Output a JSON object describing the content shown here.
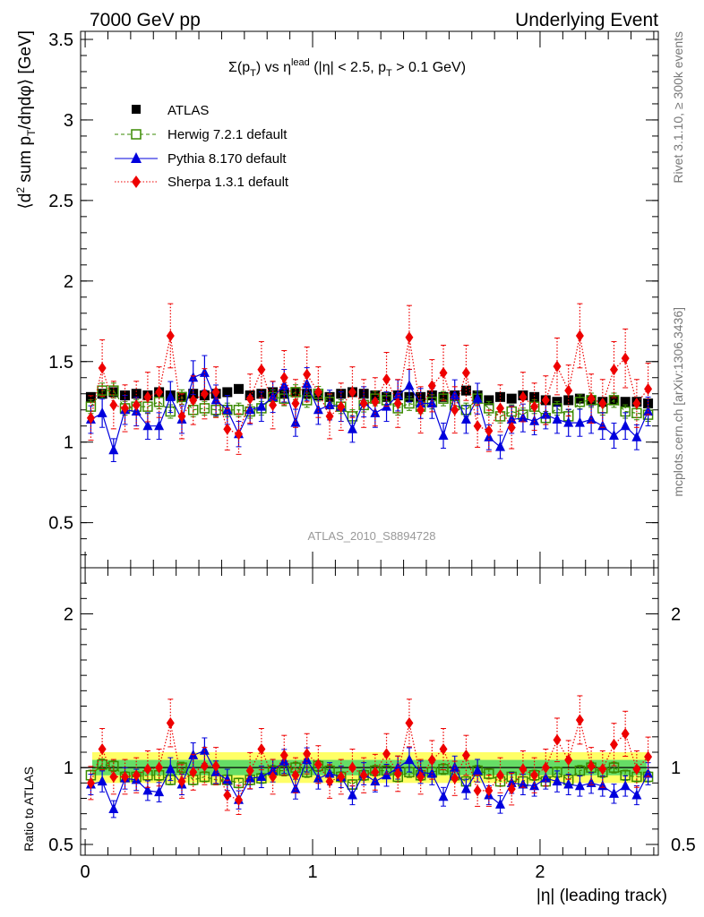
{
  "header": {
    "left": "7000 GeV pp",
    "right": "Underlying Event"
  },
  "side_text": {
    "rivet": "Rivet 3.1.10, ≥ 300k events",
    "mcplots": "mcplots.cern.ch [arXiv:1306.3436]"
  },
  "title": {
    "main": "Σ(p",
    "sub1": "T",
    "mid": ") vs η",
    "sup": "lead",
    "rest": " (|η| < 2.5, p",
    "sub2": "T",
    "end": " > 0.1 GeV)"
  },
  "analysis_label": "ATLAS_2010_S8894728",
  "axes": {
    "ylabel_top": "⟨d² sum p_T/dηdφ⟩ [GeV]",
    "ylabel_bottom": "Ratio to ATLAS",
    "xlabel": "|η| (leading track)"
  },
  "legend": [
    "ATLAS",
    "Herwig 7.2.1 default",
    "Pythia 8.170 default",
    "Sherpa 1.3.1 default"
  ],
  "colors": {
    "atlas": "#000000",
    "herwig": "#3a8a00",
    "pythia": "#0000dd",
    "sherpa": "#ee0000",
    "band_yellow": "#ffff66",
    "band_green": "#66dd66"
  },
  "chart_data": {
    "type": "scatter",
    "x": [
      0.025,
      0.075,
      0.125,
      0.175,
      0.225,
      0.275,
      0.325,
      0.375,
      0.425,
      0.475,
      0.525,
      0.575,
      0.625,
      0.675,
      0.725,
      0.775,
      0.825,
      0.875,
      0.925,
      0.975,
      1.025,
      1.075,
      1.125,
      1.175,
      1.225,
      1.275,
      1.325,
      1.375,
      1.425,
      1.475,
      1.525,
      1.575,
      1.625,
      1.675,
      1.725,
      1.775,
      1.825,
      1.875,
      1.925,
      1.975,
      2.025,
      2.075,
      2.125,
      2.175,
      2.225,
      2.275,
      2.325,
      2.375,
      2.425,
      2.475
    ],
    "xlim": [
      -0.02,
      2.52
    ],
    "xticks": [
      "0",
      "1",
      "2"
    ],
    "top_panel": {
      "ylim": [
        0.22,
        3.55
      ],
      "yticks": [
        "0.5",
        "1",
        "1.5",
        "2",
        "2.5",
        "3",
        "3.5"
      ],
      "series": [
        {
          "name": "ATLAS",
          "values": [
            1.28,
            1.3,
            1.31,
            1.29,
            1.3,
            1.29,
            1.31,
            1.29,
            1.28,
            1.3,
            1.29,
            1.3,
            1.31,
            1.33,
            1.29,
            1.3,
            1.31,
            1.3,
            1.31,
            1.3,
            1.29,
            1.28,
            1.3,
            1.31,
            1.3,
            1.29,
            1.28,
            1.29,
            1.28,
            1.28,
            1.29,
            1.28,
            1.29,
            1.32,
            1.29,
            1.26,
            1.28,
            1.27,
            1.29,
            1.28,
            1.26,
            1.25,
            1.26,
            1.27,
            1.26,
            1.25,
            1.26,
            1.25,
            1.25,
            1.24
          ]
        },
        {
          "name": "Herwig 7.2.1 default",
          "values": [
            1.22,
            1.32,
            1.32,
            1.21,
            1.22,
            1.22,
            1.25,
            1.19,
            1.28,
            1.2,
            1.21,
            1.2,
            1.2,
            1.2,
            1.19,
            1.21,
            1.28,
            1.27,
            1.31,
            1.26,
            1.3,
            1.25,
            1.22,
            1.16,
            1.23,
            1.27,
            1.26,
            1.21,
            1.24,
            1.22,
            1.25,
            1.27,
            1.23,
            1.2,
            1.27,
            1.21,
            1.16,
            1.19,
            1.17,
            1.22,
            1.15,
            1.21,
            1.16,
            1.25,
            1.26,
            1.21,
            1.26,
            1.19,
            1.18,
            1.17
          ]
        },
        {
          "name": "Pythia 8.170 default",
          "values": [
            1.14,
            1.18,
            0.95,
            1.2,
            1.19,
            1.1,
            1.1,
            1.28,
            1.14,
            1.4,
            1.43,
            1.26,
            1.2,
            1.05,
            1.2,
            1.22,
            1.28,
            1.35,
            1.12,
            1.36,
            1.2,
            1.23,
            1.22,
            1.08,
            1.25,
            1.18,
            1.22,
            1.29,
            1.35,
            1.24,
            1.24,
            1.04,
            1.29,
            1.14,
            1.27,
            1.03,
            0.97,
            1.14,
            1.15,
            1.13,
            1.17,
            1.14,
            1.12,
            1.12,
            1.14,
            1.1,
            1.04,
            1.1,
            1.03,
            1.19
          ]
        },
        {
          "name": "Sherpa 1.3.1 default",
          "values": [
            1.15,
            1.46,
            1.23,
            1.21,
            1.23,
            1.28,
            1.31,
            1.66,
            1.16,
            1.26,
            1.3,
            1.31,
            1.08,
            1.05,
            1.27,
            1.45,
            1.23,
            1.4,
            1.24,
            1.42,
            1.31,
            1.16,
            1.22,
            1.31,
            1.24,
            1.25,
            1.39,
            1.24,
            1.65,
            1.2,
            1.35,
            1.43,
            1.2,
            1.43,
            1.1,
            1.07,
            1.21,
            1.09,
            1.28,
            1.22,
            1.26,
            1.47,
            1.32,
            1.66,
            1.27,
            1.24,
            1.45,
            1.52,
            1.24,
            1.33
          ]
        }
      ]
    },
    "ratio_panel": {
      "ylim": [
        0.43,
        2.3
      ],
      "yticks": [
        "0.5",
        "1",
        "2"
      ],
      "band_yellow": [
        0.9,
        1.1
      ],
      "band_green": [
        0.95,
        1.05
      ],
      "series": [
        {
          "name": "Herwig 7.2.1 default",
          "values": [
            0.95,
            1.02,
            1.01,
            0.94,
            0.94,
            0.95,
            0.95,
            0.92,
            1.0,
            0.92,
            0.94,
            0.92,
            0.92,
            0.9,
            0.92,
            0.93,
            0.98,
            0.98,
            1.0,
            0.97,
            1.01,
            0.98,
            0.94,
            0.89,
            0.95,
            0.98,
            0.98,
            0.94,
            0.97,
            0.95,
            0.97,
            0.99,
            0.95,
            0.91,
            0.98,
            0.96,
            0.91,
            0.94,
            0.91,
            0.95,
            0.91,
            0.97,
            0.92,
            0.98,
            1.0,
            0.97,
            1.0,
            0.95,
            0.94,
            0.94
          ]
        },
        {
          "name": "Pythia 8.170 default",
          "values": [
            0.89,
            0.91,
            0.73,
            0.93,
            0.92,
            0.85,
            0.84,
            0.99,
            0.89,
            1.08,
            1.11,
            0.97,
            0.92,
            0.79,
            0.93,
            0.94,
            0.98,
            1.04,
            0.86,
            1.05,
            0.93,
            0.96,
            0.94,
            0.82,
            0.96,
            0.91,
            0.95,
            1.0,
            1.05,
            0.97,
            0.96,
            0.81,
            1.0,
            0.86,
            0.98,
            0.82,
            0.76,
            0.9,
            0.89,
            0.88,
            0.93,
            0.91,
            0.89,
            0.88,
            0.9,
            0.88,
            0.83,
            0.88,
            0.82,
            0.96
          ]
        },
        {
          "name": "Sherpa 1.3.1 default",
          "values": [
            0.9,
            1.12,
            0.94,
            0.94,
            0.95,
            0.99,
            1.0,
            1.29,
            0.91,
            0.97,
            1.01,
            1.01,
            0.82,
            0.79,
            0.98,
            1.12,
            0.94,
            1.08,
            0.95,
            1.09,
            1.02,
            0.91,
            0.94,
            1.0,
            0.95,
            0.97,
            1.09,
            0.96,
            1.29,
            0.94,
            1.05,
            1.12,
            0.93,
            1.08,
            0.85,
            0.85,
            0.95,
            0.86,
            0.99,
            0.95,
            1.0,
            1.18,
            1.05,
            1.31,
            1.01,
            0.99,
            1.15,
            1.22,
            0.99,
            1.07
          ]
        }
      ]
    }
  }
}
